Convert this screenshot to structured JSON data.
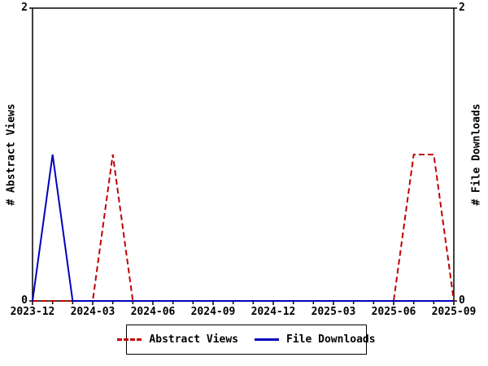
{
  "chart_data": {
    "type": "line",
    "x": [
      "2023-12",
      "2024-01",
      "2024-02",
      "2024-03",
      "2024-04",
      "2024-05",
      "2024-06",
      "2024-07",
      "2024-08",
      "2024-09",
      "2024-10",
      "2024-11",
      "2024-12",
      "2025-01",
      "2025-02",
      "2025-03",
      "2025-04",
      "2025-05",
      "2025-06",
      "2025-07",
      "2025-08",
      "2025-09"
    ],
    "series": [
      {
        "name": "Abstract Views",
        "color": "#c00000",
        "style": "dashed",
        "values": [
          0,
          0,
          0,
          0,
          1,
          0,
          0,
          0,
          0,
          0,
          0,
          0,
          0,
          0,
          0,
          0,
          0,
          0,
          0,
          1,
          1,
          0
        ]
      },
      {
        "name": "File Downloads",
        "color": "#0000bb",
        "style": "solid",
        "values": [
          0,
          1,
          0,
          0,
          0,
          0,
          0,
          0,
          0,
          0,
          0,
          0,
          0,
          0,
          0,
          0,
          0,
          0,
          0,
          0,
          0,
          0
        ]
      }
    ],
    "ylabel_left": "# Abstract Views",
    "ylabel_right": "# File Downloads",
    "ylim": [
      0,
      2
    ],
    "ytick_top": "2",
    "ytick_bottom": "0",
    "xtick_labels": [
      "2023-12",
      "2024-03",
      "2024-06",
      "2024-09",
      "2024-12",
      "2025-03",
      "2025-06",
      "2025-09"
    ],
    "xtick_indices": [
      0,
      3,
      6,
      9,
      12,
      15,
      18,
      21
    ],
    "legend_position": "bottom-center",
    "grid": false,
    "axis_color": "#000000",
    "background": "#ffffff"
  }
}
